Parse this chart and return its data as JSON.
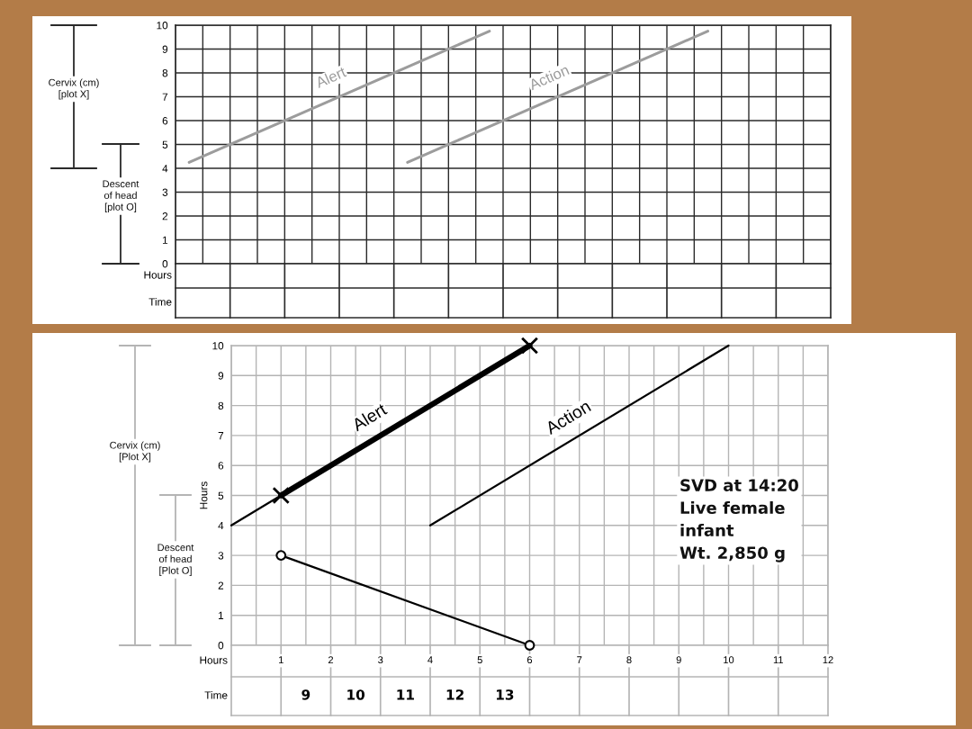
{
  "chart_data": [
    {
      "type": "line",
      "categories": [
        null,
        null,
        null,
        null,
        null,
        null,
        null,
        null,
        null,
        null,
        null,
        null,
        null,
        null,
        null,
        null,
        null,
        null,
        null,
        null,
        null,
        null,
        null,
        null
      ],
      "series": [
        {
          "name": "Alert",
          "color": "#9c9c9c",
          "values": [
            4.25,
            4.75,
            5.25,
            5.75,
            6.25,
            6.75,
            7.25,
            7.75,
            8.25,
            8.75,
            9.25,
            9.75,
            null,
            null,
            null,
            null,
            null,
            null,
            null,
            null,
            null,
            null,
            null,
            null
          ]
        },
        {
          "name": "Action",
          "color": "#9c9c9c",
          "values": [
            null,
            null,
            null,
            null,
            null,
            null,
            null,
            null,
            4.25,
            4.75,
            5.25,
            5.75,
            6.25,
            6.75,
            7.25,
            7.75,
            8.25,
            8.75,
            9.25,
            9.75,
            null,
            null,
            null,
            null
          ]
        }
      ],
      "ylim": [
        0,
        10
      ],
      "yticks": [
        0,
        1,
        2,
        3,
        4,
        5,
        6,
        7,
        8,
        9,
        10
      ],
      "xlabel": "Hours",
      "x2label": "Time",
      "grid": true,
      "annotations": [
        "Cervix (cm)\n[plot X]",
        "Descent\nof head\n[plot O]"
      ]
    },
    {
      "type": "line",
      "series": [
        {
          "name": "Alert",
          "color": "#000000",
          "x": [
            0,
            6
          ],
          "values": [
            4,
            10
          ]
        },
        {
          "name": "Action",
          "color": "#000000",
          "x": [
            4,
            10
          ],
          "values": [
            4,
            10
          ]
        },
        {
          "color": "#000000",
          "x": [
            1,
            6
          ],
          "values": [
            5,
            10
          ],
          "marker": "cross"
        },
        {
          "color": "#000000",
          "x": [
            1,
            6
          ],
          "values": [
            3,
            0
          ],
          "marker": "circle"
        }
      ],
      "xlim": [
        0,
        12
      ],
      "xticks": [
        1,
        2,
        3,
        4,
        5,
        6,
        7,
        8,
        9,
        10,
        11,
        12
      ],
      "ylim": [
        0,
        10
      ],
      "yticks": [
        0,
        1,
        2,
        3,
        4,
        5,
        6,
        7,
        8,
        9,
        10
      ],
      "xlabel": "Hours",
      "ylabel": "Hours",
      "x2label": "Time",
      "x2lim": [
        7.5,
        19.5
      ],
      "x2ticks": [
        9,
        10,
        11,
        12,
        13
      ],
      "grid": true,
      "annotations": [
        "Cervix (cm)\n[Plot X]",
        "Descent\nof head\n[Plot O]",
        "SVD at 14:20\nLive female\ninfant\nWt. 2,850 g"
      ]
    }
  ]
}
